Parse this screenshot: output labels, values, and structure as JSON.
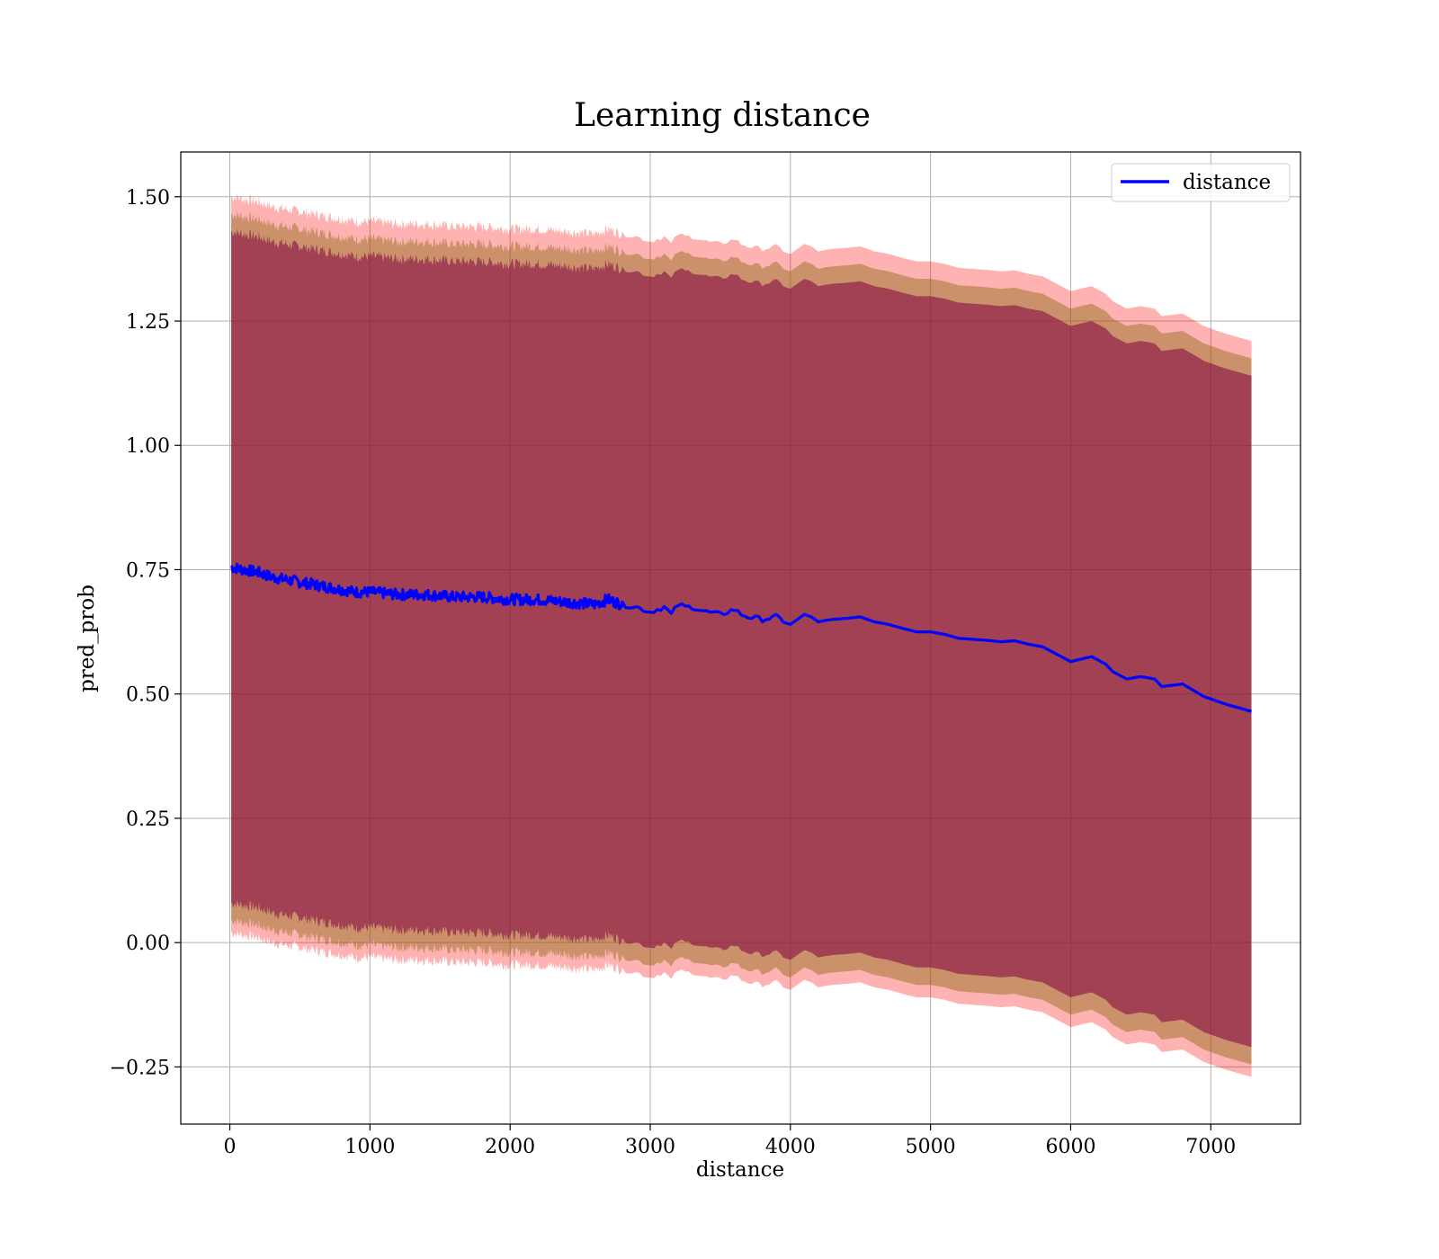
{
  "chart_data": {
    "type": "area",
    "title": "Learning distance",
    "xlabel": "distance",
    "ylabel": "pred_prob",
    "xlim": [
      -350,
      7640
    ],
    "ylim": [
      -0.365,
      1.59
    ],
    "x_ticks": [
      0,
      1000,
      2000,
      3000,
      4000,
      5000,
      6000,
      7000
    ],
    "x_tick_labels": [
      "0",
      "1000",
      "2000",
      "3000",
      "4000",
      "5000",
      "6000",
      "7000"
    ],
    "y_ticks": [
      -0.25,
      0.0,
      0.25,
      0.5,
      0.75,
      1.0,
      1.25,
      1.5
    ],
    "y_tick_labels": [
      "−0.25",
      "0.00",
      "0.25",
      "0.50",
      "0.75",
      "1.00",
      "1.25",
      "1.50"
    ],
    "grid": true,
    "legend_position": "upper right",
    "colors": {
      "line": "#0000ff",
      "band_outer": "#ff0000",
      "band_mid": "#8b6914",
      "band_inner": "#800040"
    },
    "series": [
      {
        "name": "distance",
        "x": [
          10,
          100,
          200,
          300,
          400,
          500,
          600,
          700,
          800,
          900,
          1000,
          1200,
          1400,
          1600,
          1800,
          2000,
          2200,
          2400,
          2600,
          2700,
          2800,
          2900,
          3000,
          3100,
          3150,
          3200,
          3250,
          3300,
          3400,
          3500,
          3600,
          3650,
          3700,
          3800,
          3900,
          4000,
          4050,
          4100,
          4150,
          4200,
          4250,
          4300,
          4400,
          4500,
          4600,
          4700,
          4800,
          4900,
          5000,
          5100,
          5200,
          5300,
          5400,
          5500,
          5600,
          5700,
          5800,
          5900,
          6000,
          6100,
          6150,
          6250,
          6300,
          6400,
          6500,
          6600,
          6650,
          6800,
          6950,
          7100,
          7290
        ],
        "y": [
          0.755,
          0.75,
          0.745,
          0.735,
          0.73,
          0.725,
          0.72,
          0.715,
          0.71,
          0.705,
          0.705,
          0.7,
          0.7,
          0.695,
          0.695,
          0.69,
          0.69,
          0.685,
          0.68,
          0.69,
          0.68,
          0.675,
          0.665,
          0.675,
          0.66,
          0.68,
          0.675,
          0.675,
          0.665,
          0.66,
          0.67,
          0.66,
          0.655,
          0.65,
          0.655,
          0.64,
          0.65,
          0.66,
          0.655,
          0.645,
          0.648,
          0.65,
          0.652,
          0.655,
          0.645,
          0.64,
          0.632,
          0.625,
          0.625,
          0.62,
          0.612,
          0.61,
          0.608,
          0.605,
          0.607,
          0.6,
          0.595,
          0.58,
          0.565,
          0.572,
          0.575,
          0.56,
          0.545,
          0.53,
          0.535,
          0.53,
          0.515,
          0.52,
          0.495,
          0.48,
          0.465
        ]
      }
    ],
    "bands": [
      {
        "offset_low": 0.735,
        "offset_high": 0.745
      },
      {
        "offset_low": 0.71,
        "offset_high": 0.71
      },
      {
        "offset_low": 0.675,
        "offset_high": 0.675
      }
    ]
  }
}
